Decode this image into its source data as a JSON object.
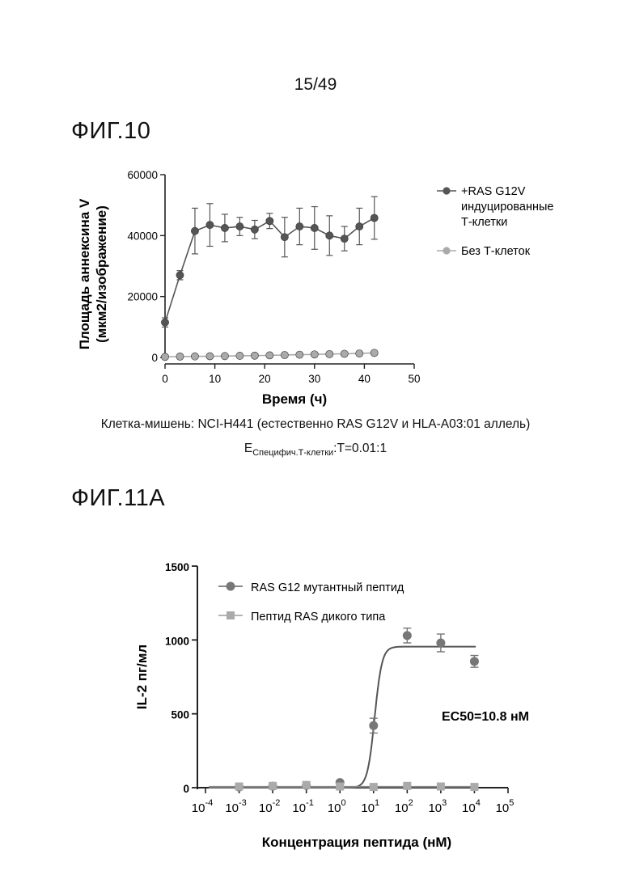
{
  "page": {
    "number": "15/49",
    "fig10_title": "ФИГ.10",
    "fig11_title": "ФИГ.11А",
    "caption_line1": "Клетка-мишень: NCI-H441 (естественно RAS G12V и HLA-A03:01 аллель)",
    "caption_e": "E",
    "caption_sub": "Специфич.Т-клетки",
    "caption_rest": ":T=0.01:1"
  },
  "chart_data": [
    {
      "type": "line",
      "xlabel": "Время (ч)",
      "ylabel_line1": "Площадь аннексина V",
      "ylabel_line2": "(мкм2/изображение)",
      "xlim": [
        0,
        50
      ],
      "ylim": [
        0,
        60000
      ],
      "x_ticks": [
        "0",
        "10",
        "20",
        "30",
        "40",
        "50"
      ],
      "y_ticks": [
        "0",
        "20000",
        "40000",
        "60000"
      ],
      "legend_position": "right",
      "series": [
        {
          "name_line1": "+RAS G12V",
          "name_line2": "индуцированные",
          "name_line3": "Т-клетки",
          "color": "#555555",
          "x": [
            0,
            3,
            6,
            9,
            12,
            15,
            18,
            21,
            24,
            27,
            30,
            33,
            36,
            39,
            42
          ],
          "y": [
            11500,
            27000,
            41500,
            43500,
            42500,
            43000,
            42000,
            44800,
            39500,
            43000,
            42500,
            40000,
            39000,
            43000,
            45800
          ],
          "err": [
            1500,
            1500,
            7500,
            7000,
            4500,
            3000,
            3000,
            2500,
            6500,
            6000,
            7000,
            6500,
            4000,
            6000,
            7000
          ]
        },
        {
          "name": "Без Т-клеток",
          "color": "#aaaaaa",
          "x": [
            0,
            3,
            6,
            9,
            12,
            15,
            18,
            21,
            24,
            27,
            30,
            33,
            36,
            39,
            42
          ],
          "y": [
            200,
            300,
            350,
            400,
            450,
            550,
            600,
            700,
            800,
            900,
            1000,
            1100,
            1200,
            1300,
            1500
          ],
          "err": [
            0,
            0,
            0,
            0,
            0,
            0,
            0,
            0,
            0,
            0,
            0,
            0,
            0,
            0,
            0
          ]
        }
      ]
    },
    {
      "type": "scatter",
      "xlabel": "Концентрация пептида (нМ)",
      "ylabel": "IL-2 пг/мл",
      "x_scale": "log",
      "xlim_exp": [
        -4,
        5
      ],
      "ylim": [
        0,
        1500
      ],
      "x_tick_exponents": [
        "-4",
        "-3",
        "-2",
        "-1",
        "0",
        "1",
        "2",
        "3",
        "4",
        "5"
      ],
      "x_tick_base": "10",
      "y_ticks": [
        "0",
        "500",
        "1000",
        "1500"
      ],
      "annotation": "EC50=10.8 нМ",
      "ec50_nM": 10.8,
      "legend_position": "top-left",
      "series": [
        {
          "name": "RAS G12 мутантный пептид",
          "color": "#777777",
          "marker": "circle",
          "x_log": [
            -3,
            -2,
            -1,
            0,
            1,
            2,
            3,
            4
          ],
          "y": [
            5,
            10,
            15,
            35,
            420,
            1030,
            980,
            855
          ],
          "err": [
            5,
            5,
            5,
            10,
            50,
            50,
            60,
            40
          ],
          "fit_top": 955,
          "fit_bottom": 0
        },
        {
          "name": "Пептид RAS дикого типа",
          "color": "#aaaaaa",
          "marker": "square",
          "x_log": [
            -3,
            -2,
            -1,
            0,
            1,
            2,
            3,
            4
          ],
          "y": [
            8,
            12,
            18,
            8,
            5,
            12,
            8,
            5
          ],
          "err": [
            3,
            3,
            3,
            3,
            3,
            3,
            3,
            3
          ]
        }
      ]
    }
  ]
}
